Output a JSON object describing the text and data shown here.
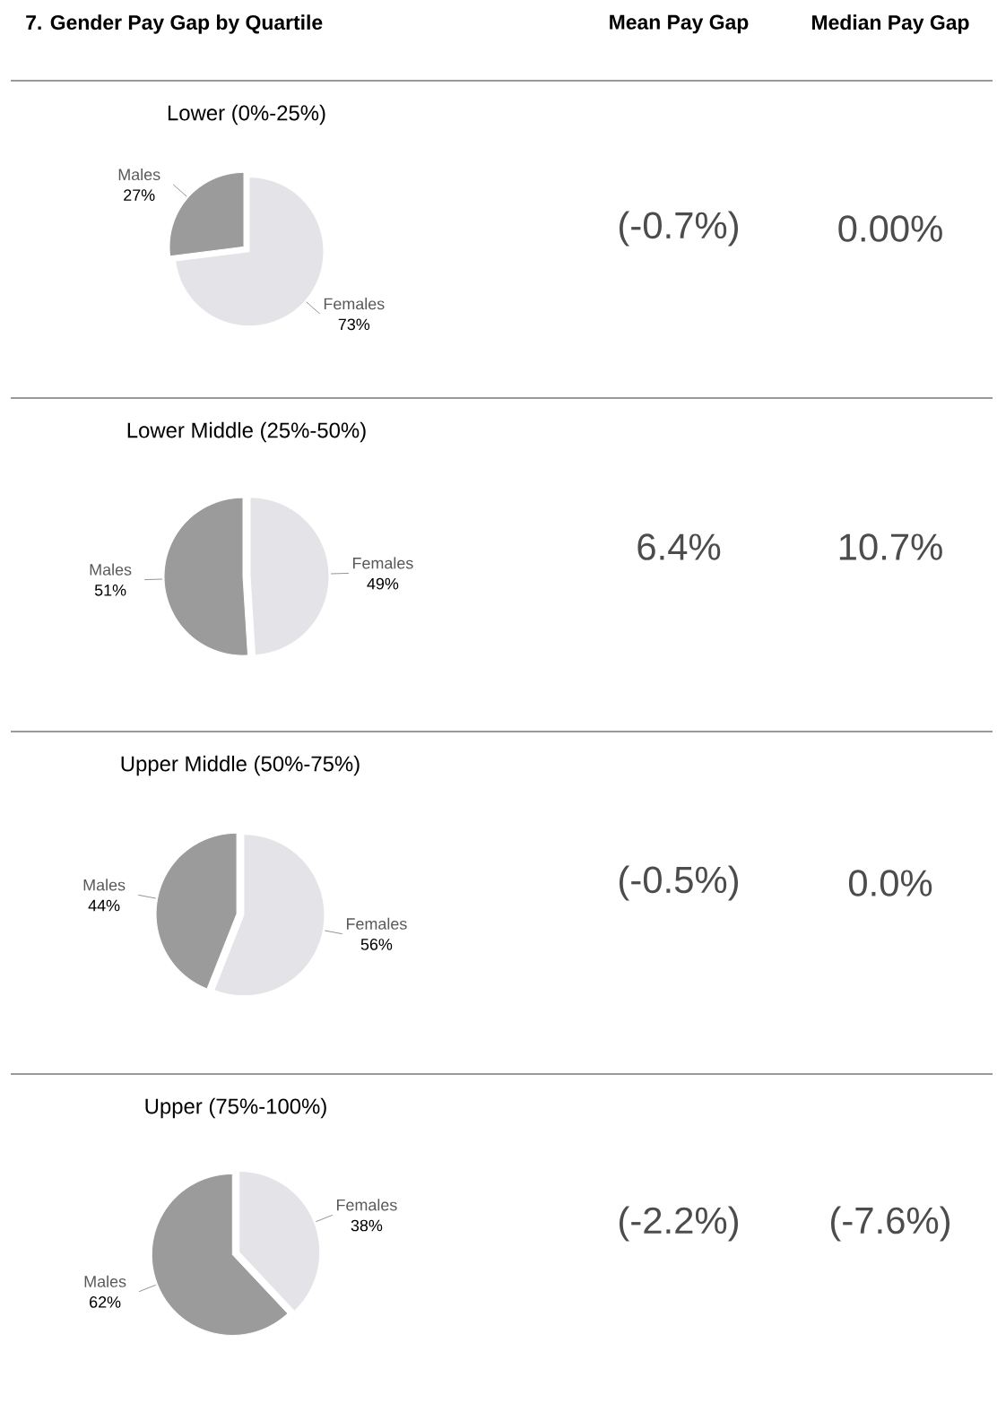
{
  "chart_data": [
    {
      "type": "other",
      "title": "7.  Gender Pay Gap by Quartile",
      "annotations": [
        "Mean Pay Gap",
        "Median Pay Gap"
      ]
    },
    {
      "type": "pie",
      "title": "Lower (0%-25%)",
      "categories": [
        "Males",
        "Females"
      ],
      "values": [
        27,
        73
      ],
      "value_labels": [
        "27%",
        "73%"
      ],
      "colors": [
        "#9b9b9b",
        "#e4e4e8"
      ],
      "annotations": [
        "(-0.7%)",
        "0.00%"
      ]
    },
    {
      "type": "pie",
      "title": "Lower Middle (25%-50%)",
      "categories": [
        "Males",
        "Females"
      ],
      "values": [
        51,
        49
      ],
      "value_labels": [
        "51%",
        "49%"
      ],
      "colors": [
        "#9b9b9b",
        "#e4e4e8"
      ],
      "annotations": [
        "6.4%",
        "10.7%"
      ]
    },
    {
      "type": "pie",
      "title": "Upper Middle (50%-75%)",
      "categories": [
        "Males",
        "Females"
      ],
      "values": [
        44,
        56
      ],
      "value_labels": [
        "44%",
        "56%"
      ],
      "colors": [
        "#9b9b9b",
        "#e4e4e8"
      ],
      "annotations": [
        "(-0.5%)",
        "0.0%"
      ]
    },
    {
      "type": "pie",
      "title": "Upper (75%-100%)",
      "categories": [
        "Males",
        "Females"
      ],
      "values": [
        62,
        38
      ],
      "value_labels": [
        "62%",
        "38%"
      ],
      "colors": [
        "#9b9b9b",
        "#e4e4e8"
      ],
      "annotations": [
        "(-2.2%)",
        "(-7.6%)"
      ]
    }
  ]
}
